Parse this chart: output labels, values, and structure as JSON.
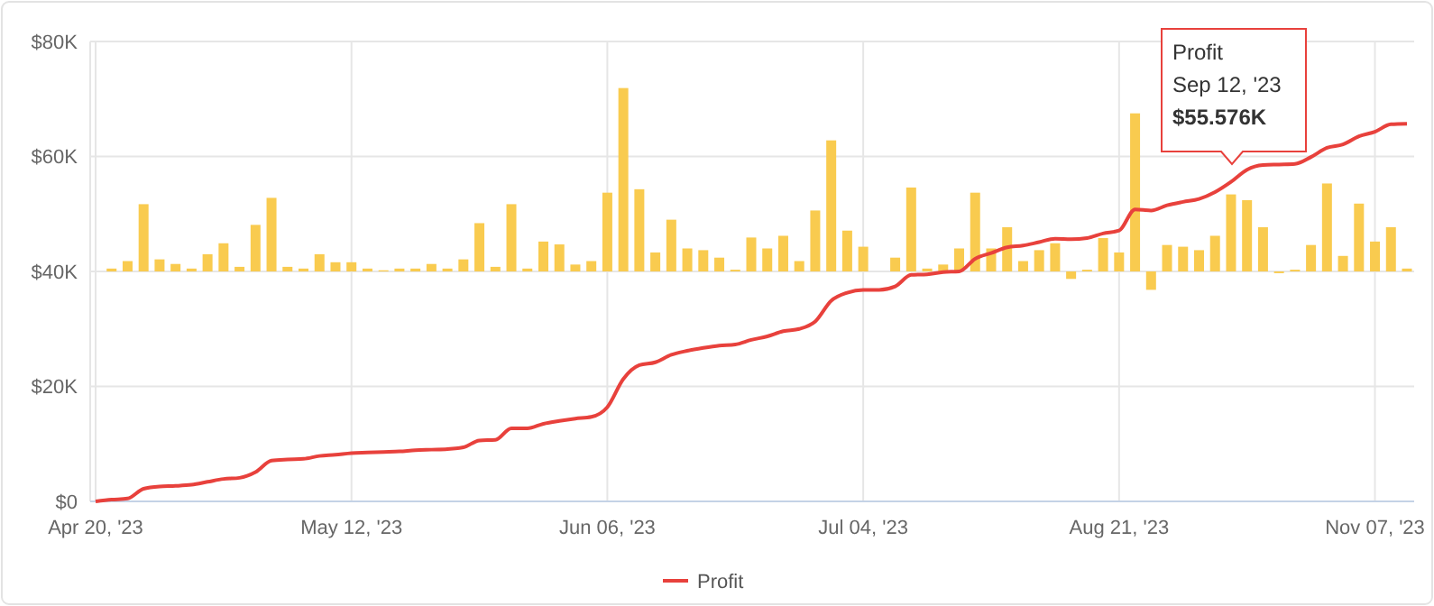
{
  "chart_data": {
    "type": "bar",
    "categories": [
      "Apr 20, '23",
      null,
      null,
      null,
      null,
      null,
      null,
      null,
      null,
      null,
      null,
      null,
      null,
      null,
      null,
      null,
      "May 12, '23",
      null,
      null,
      null,
      null,
      null,
      null,
      null,
      null,
      null,
      null,
      null,
      null,
      null,
      null,
      null,
      "Jun 06, '23",
      null,
      null,
      null,
      null,
      null,
      null,
      null,
      null,
      null,
      null,
      null,
      null,
      null,
      null,
      null,
      "Jul 04, '23",
      null,
      null,
      null,
      null,
      null,
      null,
      null,
      null,
      null,
      null,
      null,
      null,
      null,
      null,
      null,
      "Aug 21, '23",
      null,
      null,
      null,
      null,
      null,
      null,
      null,
      null,
      null,
      null,
      null,
      null,
      null,
      null,
      null,
      "Nov 07, '23",
      null,
      null
    ],
    "series": [
      {
        "color": "#f9cb4f",
        "base": [
          null,
          40000,
          40000,
          40000,
          40000,
          40000,
          40000,
          40000,
          40000,
          40000,
          40000,
          40000,
          40000,
          40000,
          40000,
          40000,
          40000,
          40000,
          40000,
          40000,
          40000,
          40000,
          40000,
          40000,
          40000,
          40000,
          40000,
          40000,
          40000,
          40000,
          40000,
          40000,
          40000,
          40000,
          40000,
          40000,
          40000,
          40000,
          40000,
          40000,
          40000,
          40000,
          40000,
          40000,
          40000,
          40000,
          40000,
          40000,
          40000,
          null,
          40000,
          40000,
          40000,
          40000,
          40000,
          40000,
          40000,
          40000,
          40000,
          40000,
          40000,
          40000,
          40000,
          40000,
          40000,
          40000,
          40000,
          40000,
          40000,
          40000,
          40000,
          40000,
          40000,
          40000,
          40000,
          40000,
          40000,
          40000,
          40000,
          40000,
          40000,
          40000,
          40000
        ],
        "values": [
          null,
          500,
          1800,
          11700,
          2100,
          1300,
          500,
          3000,
          4900,
          800,
          8100,
          12800,
          800,
          500,
          3000,
          1600,
          1600,
          500,
          200,
          500,
          500,
          1300,
          500,
          2100,
          8400,
          800,
          11700,
          500,
          5200,
          4700,
          1200,
          1800,
          13700,
          31900,
          14300,
          3300,
          9000,
          4000,
          3700,
          2400,
          300,
          5900,
          4000,
          6200,
          1800,
          10600,
          22800,
          7100,
          4300,
          null,
          2400,
          14600,
          500,
          1200,
          4000,
          13700,
          4000,
          7700,
          1800,
          3700,
          4900,
          -1300,
          300,
          5800,
          3300,
          27500,
          -3200,
          4600,
          4300,
          3700,
          6200,
          13400,
          12400,
          7700,
          -300,
          300,
          4600,
          15300,
          2700,
          11800,
          5200,
          7700,
          500
        ]
      },
      {
        "type": "line",
        "name": "Profit",
        "color": "#e8413c",
        "values": [
          0,
          300,
          500,
          2200,
          2600,
          2700,
          2900,
          3400,
          3900,
          4100,
          5100,
          7100,
          7300,
          7400,
          7900,
          8100,
          8400,
          8500,
          8600,
          8700,
          8900,
          9000,
          9100,
          9400,
          10600,
          10700,
          12700,
          12700,
          13500,
          14000,
          14400,
          14700,
          16400,
          21300,
          23700,
          24200,
          25500,
          26200,
          26700,
          27100,
          27300,
          28100,
          28700,
          29600,
          30000,
          31300,
          34900,
          36300,
          36800,
          36800,
          37400,
          39400,
          39500,
          39900,
          40000,
          42200,
          43200,
          44200,
          44500,
          45100,
          45700,
          45600,
          45800,
          46600,
          47100,
          50800,
          50600,
          51500,
          52100,
          52600,
          53800,
          55576,
          57700,
          58500,
          58600,
          58700,
          59900,
          61500,
          62100,
          63500,
          64300,
          65600,
          65700
        ]
      }
    ],
    "ylim": [
      0,
      80000
    ],
    "yticks": [
      {
        "value": 0,
        "label": "$0"
      },
      {
        "value": 20000,
        "label": "$20K"
      },
      {
        "value": 40000,
        "label": "$40K"
      },
      {
        "value": 60000,
        "label": "$60K"
      },
      {
        "value": 80000,
        "label": "$80K"
      }
    ],
    "grid": true,
    "legend": "bottom",
    "marker": "none",
    "line_style": "solid",
    "annotations": [
      "Profit\nSep 12, '23\n$55.576K"
    ]
  }
}
